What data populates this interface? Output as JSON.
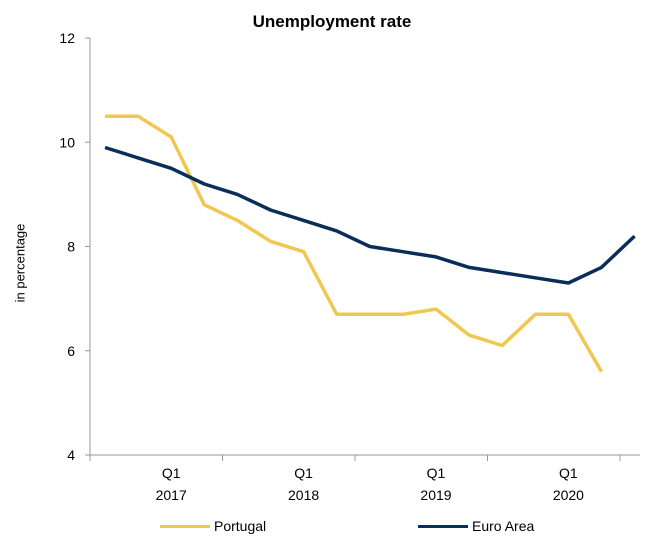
{
  "chart_data": {
    "type": "line",
    "title": "Unemployment rate",
    "ylabel": "in percentage",
    "xlabel": "",
    "ylim": [
      4,
      12
    ],
    "yticks": [
      4,
      6,
      8,
      10,
      12
    ],
    "x_tick_labels": [
      {
        "q": "Q1",
        "year": "2017",
        "index": 2
      },
      {
        "q": "Q1",
        "year": "2018",
        "index": 6
      },
      {
        "q": "Q1",
        "year": "2019",
        "index": 10
      },
      {
        "q": "Q1",
        "year": "2020",
        "index": 14
      }
    ],
    "x": [
      "2016Q3",
      "2016Q4",
      "2017Q1",
      "2017Q2",
      "2017Q3",
      "2017Q4",
      "2018Q1",
      "2018Q2",
      "2018Q3",
      "2018Q4",
      "2019Q1",
      "2019Q2",
      "2019Q3",
      "2019Q4",
      "2020Q1",
      "2020Q2",
      "2020Q3"
    ],
    "series": [
      {
        "name": "Portugal",
        "color": "#f0c850",
        "values": [
          10.5,
          10.5,
          10.1,
          8.8,
          8.5,
          8.1,
          7.9,
          6.7,
          6.7,
          6.7,
          6.8,
          6.3,
          6.1,
          6.7,
          6.7,
          5.6,
          null
        ]
      },
      {
        "name": "Euro Area",
        "color": "#0a2d5a",
        "values": [
          9.9,
          9.7,
          9.5,
          9.2,
          9.0,
          8.7,
          8.5,
          8.3,
          8.0,
          7.9,
          7.8,
          7.6,
          7.5,
          7.4,
          7.3,
          7.6,
          8.2
        ]
      }
    ],
    "grid": false,
    "legend_position": "bottom"
  }
}
